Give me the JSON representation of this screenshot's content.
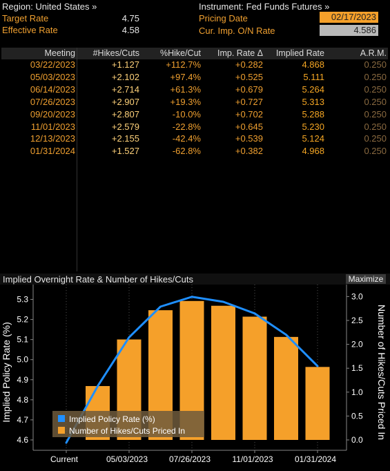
{
  "header": {
    "region_label": "Region: United States »",
    "instrument_label": "Instrument: Fed Funds Futures »",
    "target_rate_label": "Target Rate",
    "target_rate_value": "4.75",
    "effective_rate_label": "Effective Rate",
    "effective_rate_value": "4.58",
    "pricing_date_label": "Pricing Date",
    "pricing_date_value": "02/17/2023",
    "cur_imp_label": "Cur. Imp. O/N Rate",
    "cur_imp_value": "4.586"
  },
  "table": {
    "columns": [
      "Meeting",
      "#Hikes/Cuts",
      "%Hike/Cut",
      "Imp. Rate Δ",
      "Implied Rate",
      "A.R.M."
    ],
    "rows": [
      [
        "03/22/2023",
        "+1.127",
        "+112.7%",
        "+0.282",
        "4.868",
        "0.250"
      ],
      [
        "05/03/2023",
        "+2.102",
        "+97.4%",
        "+0.525",
        "5.111",
        "0.250"
      ],
      [
        "06/14/2023",
        "+2.714",
        "+61.3%",
        "+0.679",
        "5.264",
        "0.250"
      ],
      [
        "07/26/2023",
        "+2.907",
        "+19.3%",
        "+0.727",
        "5.313",
        "0.250"
      ],
      [
        "09/20/2023",
        "+2.807",
        "-10.0%",
        "+0.702",
        "5.288",
        "0.250"
      ],
      [
        "11/01/2023",
        "+2.579",
        "-22.8%",
        "+0.645",
        "5.230",
        "0.250"
      ],
      [
        "12/13/2023",
        "+2.155",
        "-42.4%",
        "+0.539",
        "5.124",
        "0.250"
      ],
      [
        "01/31/2024",
        "+1.527",
        "-62.8%",
        "+0.382",
        "4.968",
        "0.250"
      ]
    ]
  },
  "chart_header": {
    "title": "Implied Overnight Rate & Number of Hikes/Cuts",
    "maximize_label": "Maximize"
  },
  "chart_data": {
    "type": "bar",
    "title": "Implied Overnight Rate & Number of Hikes/Cuts",
    "categories": [
      "Current",
      "03/22/2023",
      "05/03/2023",
      "06/14/2023",
      "07/26/2023",
      "09/20/2023",
      "11/01/2023",
      "12/13/2023",
      "01/31/2024"
    ],
    "x_tick_labels": [
      "Current",
      "05/03/2023",
      "07/26/2023",
      "11/01/2023",
      "01/31/2024"
    ],
    "series": [
      {
        "name": "Implied Policy Rate (%)",
        "type": "line",
        "axis": "left",
        "values": [
          4.586,
          4.868,
          5.111,
          5.264,
          5.313,
          5.288,
          5.23,
          5.124,
          4.968
        ],
        "color": "#1f8fff"
      },
      {
        "name": "Number of Hikes/Cuts Priced In",
        "type": "bar",
        "axis": "right",
        "values": [
          null,
          1.127,
          2.102,
          2.714,
          2.907,
          2.807,
          2.579,
          2.155,
          1.527
        ],
        "color": "#f5a02a"
      }
    ],
    "ylabel_left": "Implied Policy Rate (%)",
    "ylabel_right": "Number of Hikes/Cuts Priced In",
    "ylim_left": [
      4.6,
      5.35
    ],
    "ylim_right": [
      0,
      3.15
    ],
    "yticks_left": [
      "4.6",
      "4.7",
      "4.8",
      "4.9",
      "5.0",
      "5.1",
      "5.2",
      "5.3"
    ],
    "yticks_right": [
      "0.0",
      "0.5",
      "1.0",
      "1.5",
      "2.0",
      "2.5",
      "3.0"
    ],
    "legend_position": "bottom-left",
    "grid": "vertical-dotted"
  }
}
